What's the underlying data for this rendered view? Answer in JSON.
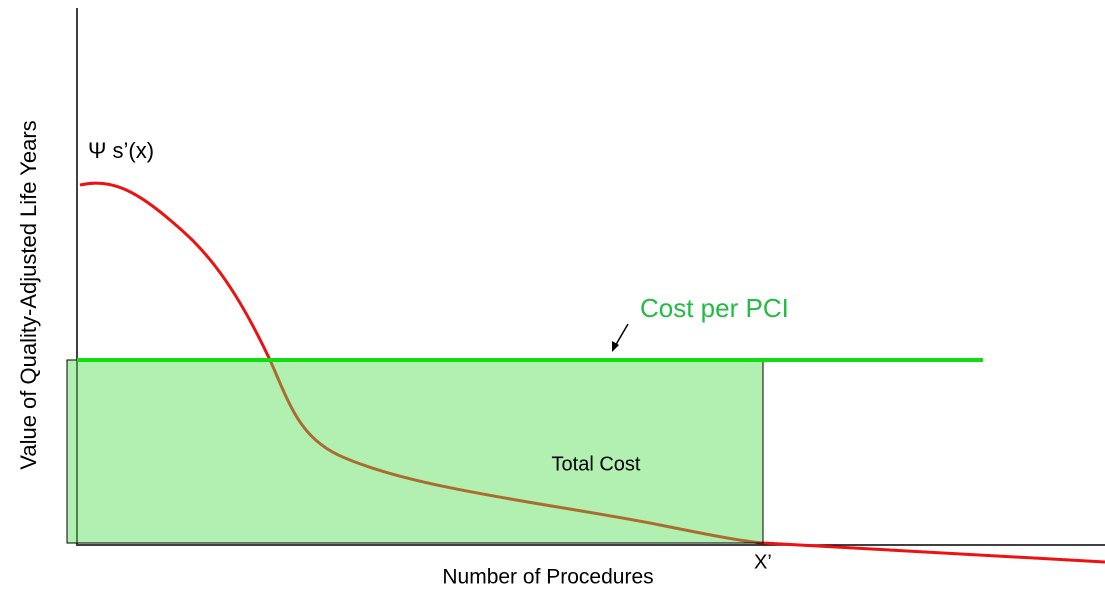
{
  "diagram": {
    "y_axis_label": "Value of Quality-Adjusted Life Years",
    "x_axis_label": "Number of Procedures",
    "curve_label": "Ψ s’(x)",
    "line_label": "Cost per PCI",
    "area_label": "Total Cost",
    "x_marker": "X’"
  }
}
